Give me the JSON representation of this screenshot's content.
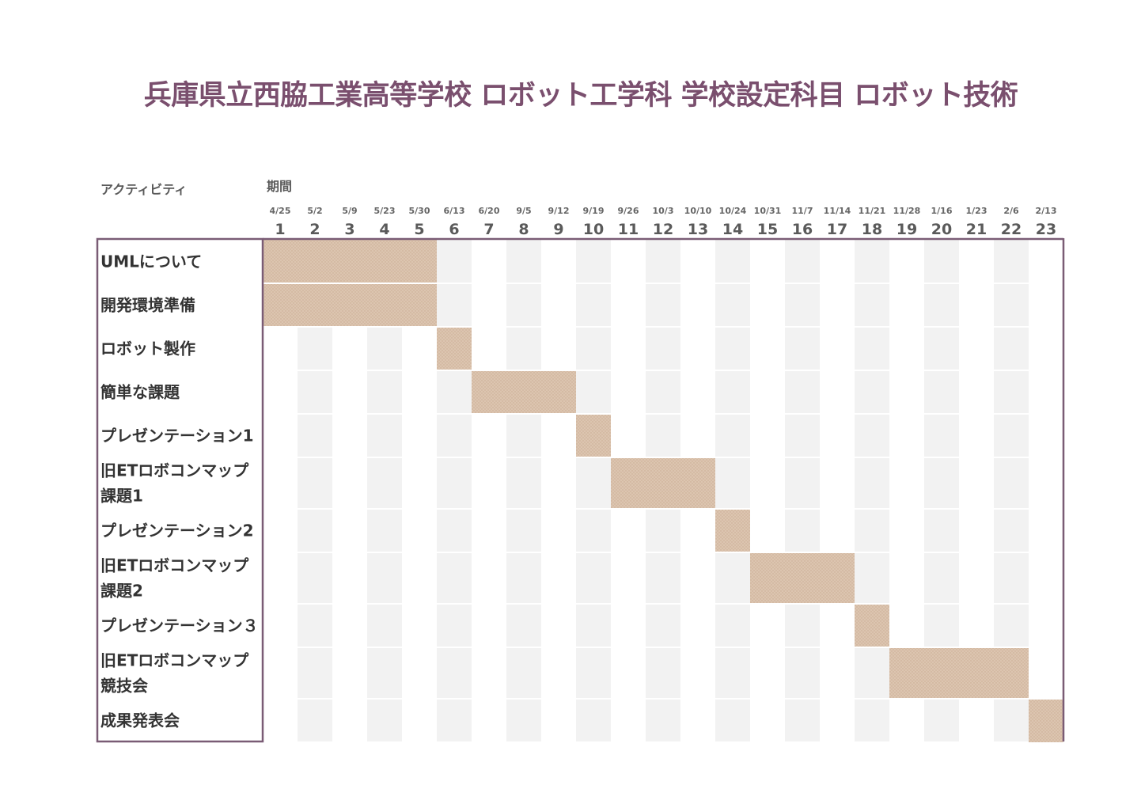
{
  "title": "兵庫県立西脇工業高等学校 ロボット工学科 学校設定科目 ロボット技術",
  "headers": {
    "activity": "アクティビティ",
    "period": "期間"
  },
  "colors": {
    "bar": "#dcc5b0",
    "stripe": "#f2f2f2",
    "border": "#7a5c75",
    "title": "#7a4f6e"
  },
  "chart_data": {
    "type": "gantt",
    "periods": [
      {
        "number": "1",
        "date": "4/25"
      },
      {
        "number": "2",
        "date": "5/2"
      },
      {
        "number": "3",
        "date": "5/9"
      },
      {
        "number": "4",
        "date": "5/23"
      },
      {
        "number": "5",
        "date": "5/30"
      },
      {
        "number": "6",
        "date": "6/13"
      },
      {
        "number": "7",
        "date": "6/20"
      },
      {
        "number": "8",
        "date": "9/5"
      },
      {
        "number": "9",
        "date": "9/12"
      },
      {
        "number": "10",
        "date": "9/19"
      },
      {
        "number": "11",
        "date": "9/26"
      },
      {
        "number": "12",
        "date": "10/3"
      },
      {
        "number": "13",
        "date": "10/10"
      },
      {
        "number": "14",
        "date": "10/24"
      },
      {
        "number": "15",
        "date": "10/31"
      },
      {
        "number": "16",
        "date": "11/7"
      },
      {
        "number": "17",
        "date": "11/14"
      },
      {
        "number": "18",
        "date": "11/21"
      },
      {
        "number": "19",
        "date": "11/28"
      },
      {
        "number": "20",
        "date": "1/16"
      },
      {
        "number": "21",
        "date": "1/23"
      },
      {
        "number": "22",
        "date": "2/6"
      },
      {
        "number": "23",
        "date": "2/13"
      }
    ],
    "activities": [
      {
        "name": "UMLについて",
        "lines": [
          "UMLについて"
        ],
        "start": 1,
        "duration": 5
      },
      {
        "name": "開発環境準備",
        "lines": [
          "開発環境準備"
        ],
        "start": 1,
        "duration": 5
      },
      {
        "name": "ロボット製作",
        "lines": [
          "ロボット製作"
        ],
        "start": 6,
        "duration": 1
      },
      {
        "name": "簡単な課題",
        "lines": [
          "簡単な課題"
        ],
        "start": 7,
        "duration": 3
      },
      {
        "name": "プレゼンテーション1",
        "lines": [
          "プレゼンテーション1"
        ],
        "start": 10,
        "duration": 1
      },
      {
        "name": "旧ETロボコンマップ課題1",
        "lines": [
          "旧ETロボコンマップ",
          "課題1"
        ],
        "start": 11,
        "duration": 3
      },
      {
        "name": "プレゼンテーション2",
        "lines": [
          "プレゼンテーション2"
        ],
        "start": 14,
        "duration": 1
      },
      {
        "name": "旧ETロボコンマップ課題2",
        "lines": [
          "旧ETロボコンマップ",
          "課題2"
        ],
        "start": 15,
        "duration": 3
      },
      {
        "name": "プレゼンテーション３",
        "lines": [
          "プレゼンテーション３"
        ],
        "start": 18,
        "duration": 1
      },
      {
        "name": "旧ETロボコンマップ競技会",
        "lines": [
          "旧ETロボコンマップ",
          "競技会"
        ],
        "start": 19,
        "duration": 4
      },
      {
        "name": "成果発表会",
        "lines": [
          "成果発表会"
        ],
        "start": 23,
        "duration": 1
      }
    ]
  }
}
